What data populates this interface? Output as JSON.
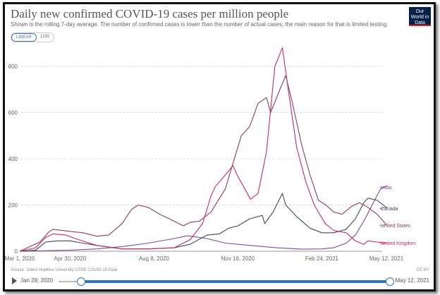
{
  "header": {
    "title": "Daily new confirmed COVID-19 cases per million people",
    "subtitle": "Shown is the rolling 7-day average. The number of confirmed cases is lower than the number of actual cases; the main reason for that is limited testing.",
    "logo": "Our World in Data"
  },
  "toggles": {
    "linear": "LINEAR",
    "log": "LOG",
    "active": "linear"
  },
  "footer": {
    "source": "Source: Johns Hopkins University CSSE COVID-19 Data",
    "license": "CC BY"
  },
  "timeline": {
    "start_label": "Jan 28, 2020",
    "end_label": "May 12, 2021",
    "range_start": "2020-03-01",
    "range_end": "2021-05-12",
    "accent": "#2f75c4"
  },
  "chart_data": {
    "type": "line",
    "title": "Daily new confirmed COVID-19 cases per million people",
    "ylim": [
      0,
      880
    ],
    "yticks": [
      "0",
      "200",
      "400",
      "600",
      "800"
    ],
    "xticks": [
      "Mar 1, 2020",
      "Apr 30, 2020",
      "Aug 8, 2020",
      "Nov 16, 2020",
      "Feb 24, 2021",
      "May 12, 2021"
    ],
    "grid": true,
    "legend": "right-end labels",
    "series": [
      {
        "name": "India",
        "color": "#7d4c95",
        "points": [
          [
            "2020-03-01",
            0
          ],
          [
            "2020-05-01",
            5
          ],
          [
            "2020-06-01",
            10
          ],
          [
            "2020-07-01",
            20
          ],
          [
            "2020-08-01",
            35
          ],
          [
            "2020-09-01",
            55
          ],
          [
            "2020-09-17",
            67
          ],
          [
            "2020-10-10",
            55
          ],
          [
            "2020-11-01",
            35
          ],
          [
            "2020-12-01",
            25
          ],
          [
            "2021-01-01",
            15
          ],
          [
            "2021-02-01",
            9
          ],
          [
            "2021-02-24",
            10
          ],
          [
            "2021-03-10",
            15
          ],
          [
            "2021-03-25",
            35
          ],
          [
            "2021-04-05",
            70
          ],
          [
            "2021-04-15",
            130
          ],
          [
            "2021-04-25",
            200
          ],
          [
            "2021-05-05",
            270
          ],
          [
            "2021-05-12",
            282
          ]
        ]
      },
      {
        "name": "Canada",
        "color": "#3d4a56",
        "points": [
          [
            "2020-03-01",
            0
          ],
          [
            "2020-03-20",
            5
          ],
          [
            "2020-04-01",
            40
          ],
          [
            "2020-04-15",
            45
          ],
          [
            "2020-04-30",
            45
          ],
          [
            "2020-05-15",
            35
          ],
          [
            "2020-06-01",
            25
          ],
          [
            "2020-07-01",
            10
          ],
          [
            "2020-08-01",
            10
          ],
          [
            "2020-09-01",
            15
          ],
          [
            "2020-09-20",
            30
          ],
          [
            "2020-10-10",
            70
          ],
          [
            "2020-10-25",
            75
          ],
          [
            "2020-11-05",
            100
          ],
          [
            "2020-11-16",
            110
          ],
          [
            "2020-11-30",
            140
          ],
          [
            "2020-12-15",
            155
          ],
          [
            "2020-12-18",
            120
          ],
          [
            "2020-12-28",
            170
          ],
          [
            "2021-01-08",
            250
          ],
          [
            "2021-01-12",
            200
          ],
          [
            "2021-01-25",
            150
          ],
          [
            "2021-02-10",
            100
          ],
          [
            "2021-02-24",
            80
          ],
          [
            "2021-03-10",
            80
          ],
          [
            "2021-03-25",
            95
          ],
          [
            "2021-04-05",
            140
          ],
          [
            "2021-04-15",
            210
          ],
          [
            "2021-04-20",
            230
          ],
          [
            "2021-05-01",
            220
          ],
          [
            "2021-05-12",
            190
          ]
        ]
      },
      {
        "name": "United States",
        "color": "#8e3d5c",
        "points": [
          [
            "2020-03-01",
            0
          ],
          [
            "2020-03-25",
            40
          ],
          [
            "2020-04-05",
            85
          ],
          [
            "2020-04-10",
            95
          ],
          [
            "2020-04-25",
            88
          ],
          [
            "2020-05-15",
            80
          ],
          [
            "2020-06-01",
            65
          ],
          [
            "2020-06-15",
            70
          ],
          [
            "2020-07-01",
            120
          ],
          [
            "2020-07-12",
            180
          ],
          [
            "2020-07-20",
            200
          ],
          [
            "2020-08-01",
            190
          ],
          [
            "2020-08-15",
            160
          ],
          [
            "2020-09-01",
            130
          ],
          [
            "2020-09-12",
            110
          ],
          [
            "2020-09-20",
            125
          ],
          [
            "2020-10-01",
            130
          ],
          [
            "2020-10-15",
            170
          ],
          [
            "2020-11-01",
            270
          ],
          [
            "2020-11-10",
            380
          ],
          [
            "2020-11-20",
            500
          ],
          [
            "2020-11-30",
            540
          ],
          [
            "2020-12-10",
            640
          ],
          [
            "2020-12-20",
            665
          ],
          [
            "2020-12-25",
            600
          ],
          [
            "2021-01-05",
            700
          ],
          [
            "2021-01-12",
            760
          ],
          [
            "2021-01-20",
            640
          ],
          [
            "2021-01-31",
            460
          ],
          [
            "2021-02-10",
            330
          ],
          [
            "2021-02-20",
            220
          ],
          [
            "2021-03-01",
            200
          ],
          [
            "2021-03-10",
            170
          ],
          [
            "2021-03-20",
            160
          ],
          [
            "2021-04-01",
            195
          ],
          [
            "2021-04-10",
            210
          ],
          [
            "2021-04-20",
            190
          ],
          [
            "2021-05-01",
            160
          ],
          [
            "2021-05-12",
            115
          ]
        ]
      },
      {
        "name": "United Kingdom",
        "color": "#c42b6a",
        "points": [
          [
            "2020-03-01",
            0
          ],
          [
            "2020-03-20",
            15
          ],
          [
            "2020-04-01",
            60
          ],
          [
            "2020-04-10",
            75
          ],
          [
            "2020-04-25",
            70
          ],
          [
            "2020-05-10",
            50
          ],
          [
            "2020-06-01",
            25
          ],
          [
            "2020-07-01",
            10
          ],
          [
            "2020-08-01",
            10
          ],
          [
            "2020-09-01",
            15
          ],
          [
            "2020-09-20",
            50
          ],
          [
            "2020-10-05",
            120
          ],
          [
            "2020-10-15",
            240
          ],
          [
            "2020-10-20",
            280
          ],
          [
            "2020-11-01",
            330
          ],
          [
            "2020-11-10",
            370
          ],
          [
            "2020-11-15",
            330
          ],
          [
            "2020-12-01",
            225
          ],
          [
            "2020-12-10",
            250
          ],
          [
            "2020-12-20",
            430
          ],
          [
            "2020-12-30",
            800
          ],
          [
            "2021-01-08",
            880
          ],
          [
            "2021-01-15",
            700
          ],
          [
            "2021-01-25",
            450
          ],
          [
            "2021-02-05",
            300
          ],
          [
            "2021-02-15",
            200
          ],
          [
            "2021-02-28",
            120
          ],
          [
            "2021-03-10",
            90
          ],
          [
            "2021-03-25",
            80
          ],
          [
            "2021-04-05",
            45
          ],
          [
            "2021-04-15",
            30
          ],
          [
            "2021-04-20",
            45
          ],
          [
            "2021-05-12",
            35
          ]
        ]
      }
    ]
  }
}
